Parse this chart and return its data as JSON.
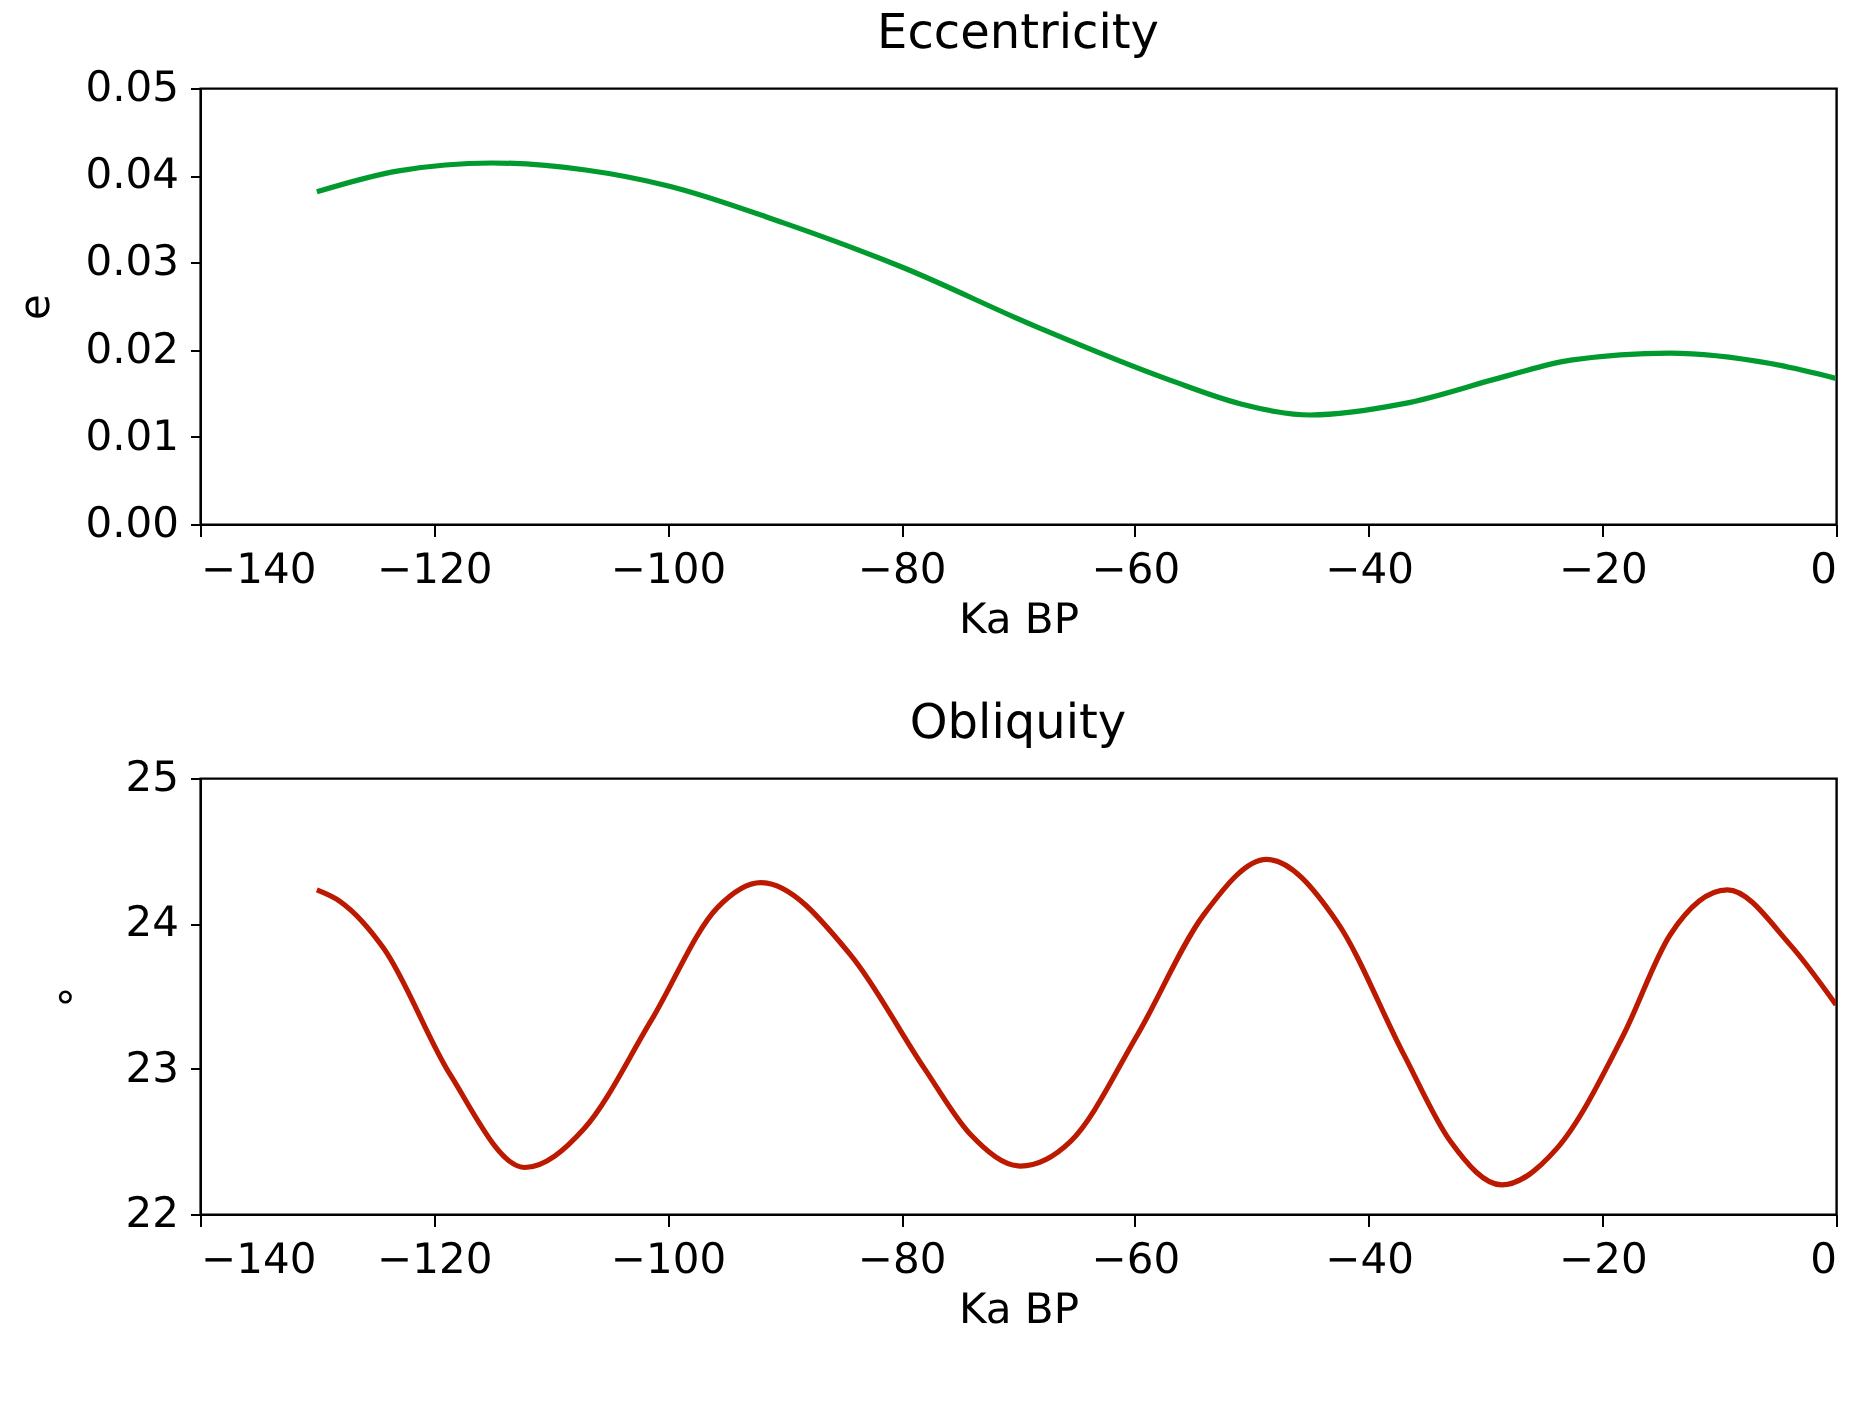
{
  "chart_data": [
    {
      "type": "line",
      "title": "Eccentricity",
      "xlabel": "Ka BP",
      "ylabel": "e",
      "xlim": [
        -140,
        0
      ],
      "xticks": [
        -140,
        -120,
        -100,
        -80,
        -60,
        -40,
        -20,
        0
      ],
      "ylim": [
        0,
        0.05
      ],
      "yticks": [
        {
          "value": 0,
          "label": "0.00"
        },
        {
          "value": 0.01,
          "label": "0.01"
        },
        {
          "value": 0.02,
          "label": "0.02"
        },
        {
          "value": 0.03,
          "label": "0.03"
        },
        {
          "value": 0.04,
          "label": "0.04"
        },
        {
          "value": 0.05,
          "label": "0.05"
        }
      ],
      "grid": false,
      "series": [
        {
          "color": "#009a2e",
          "x": [
            -130,
            -123,
            -115,
            -107,
            -100,
            -90,
            -80,
            -68.4,
            -57,
            -51,
            -45,
            -37,
            -28.4,
            -22.7,
            -14.2,
            -5.6,
            0
          ],
          "values": [
            0.0381,
            0.0405,
            0.0414,
            0.0406,
            0.0388,
            0.0345,
            0.0295,
            0.0226,
            0.0165,
            0.0138,
            0.0125,
            0.0138,
            0.0169,
            0.0188,
            0.0196,
            0.0184,
            0.0167
          ]
        }
      ]
    },
    {
      "type": "line",
      "title": "Obliquity",
      "xlabel": "Ka BP",
      "ylabel": "°",
      "xlim": [
        -140,
        0
      ],
      "xticks": [
        -140,
        -120,
        -100,
        -80,
        -60,
        -40,
        -20,
        0
      ],
      "ylim": [
        22,
        25
      ],
      "yticks": [
        22,
        23,
        24,
        25
      ],
      "grid": false,
      "series": [
        {
          "color": "#bb1a00",
          "x": [
            -130,
            -128,
            -124.3,
            -118.6,
            -112.2,
            -107.1,
            -101.4,
            -95.7,
            -92,
            -84.3,
            -78,
            -74.1,
            -69.8,
            -65.5,
            -59.8,
            -54.1,
            -48.7,
            -42.7,
            -37,
            -33,
            -28.6,
            -23.9,
            -18.2,
            -14.2,
            -9.3,
            -3.9,
            0
          ],
          "values": [
            24.23,
            24.15,
            23.83,
            22.96,
            22.32,
            22.59,
            23.33,
            24.11,
            24.28,
            23.78,
            23.0,
            22.55,
            22.33,
            22.5,
            23.23,
            24.06,
            24.44,
            24.01,
            23.1,
            22.5,
            22.2,
            22.45,
            23.23,
            23.92,
            24.23,
            23.85,
            23.44
          ]
        }
      ]
    }
  ]
}
